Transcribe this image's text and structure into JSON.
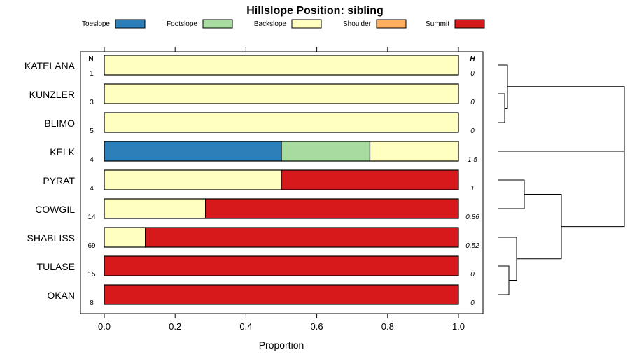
{
  "chart_data": {
    "type": "bar",
    "orientation": "horizontal",
    "stacked": true,
    "title": "Hillslope Position: sibling",
    "xlabel": "Proportion",
    "xlim": [
      0,
      1
    ],
    "xticks": [
      "0.0",
      "0.2",
      "0.4",
      "0.6",
      "0.8",
      "1.0"
    ],
    "n_header": "N",
    "h_header": "H",
    "legend": [
      {
        "name": "Toeslope",
        "color": "#2c7fb8"
      },
      {
        "name": "Footslope",
        "color": "#a8dba0"
      },
      {
        "name": "Backslope",
        "color": "#ffffbf"
      },
      {
        "name": "Shoulder",
        "color": "#fdae61"
      },
      {
        "name": "Summit",
        "color": "#d7191c"
      }
    ],
    "categories": [
      "KATELANA",
      "KUNZLER",
      "BLIMO",
      "KELK",
      "PYRAT",
      "COWGIL",
      "SHABLISS",
      "TULASE",
      "OKAN"
    ],
    "n": [
      "1",
      "3",
      "5",
      "4",
      "4",
      "14",
      "69",
      "15",
      "8"
    ],
    "h": [
      "0",
      "0",
      "0",
      "1.5",
      "1",
      "0.86",
      "0.52",
      "0",
      "0"
    ],
    "series": [
      {
        "name": "Toeslope",
        "values": [
          0,
          0,
          0,
          0.5,
          0,
          0,
          0,
          0,
          0
        ]
      },
      {
        "name": "Footslope",
        "values": [
          0,
          0,
          0,
          0.25,
          0,
          0,
          0,
          0,
          0
        ]
      },
      {
        "name": "Backslope",
        "values": [
          1,
          1,
          1,
          0.25,
          0.5,
          0.286,
          0.116,
          0,
          0
        ]
      },
      {
        "name": "Shoulder",
        "values": [
          0,
          0,
          0,
          0,
          0,
          0,
          0,
          0,
          0
        ]
      },
      {
        "name": "Summit",
        "values": [
          0,
          0,
          0,
          0,
          0.5,
          0.714,
          0.884,
          1,
          1
        ]
      }
    ],
    "dendrogram": "hierarchical clustering of categories shown at right"
  }
}
